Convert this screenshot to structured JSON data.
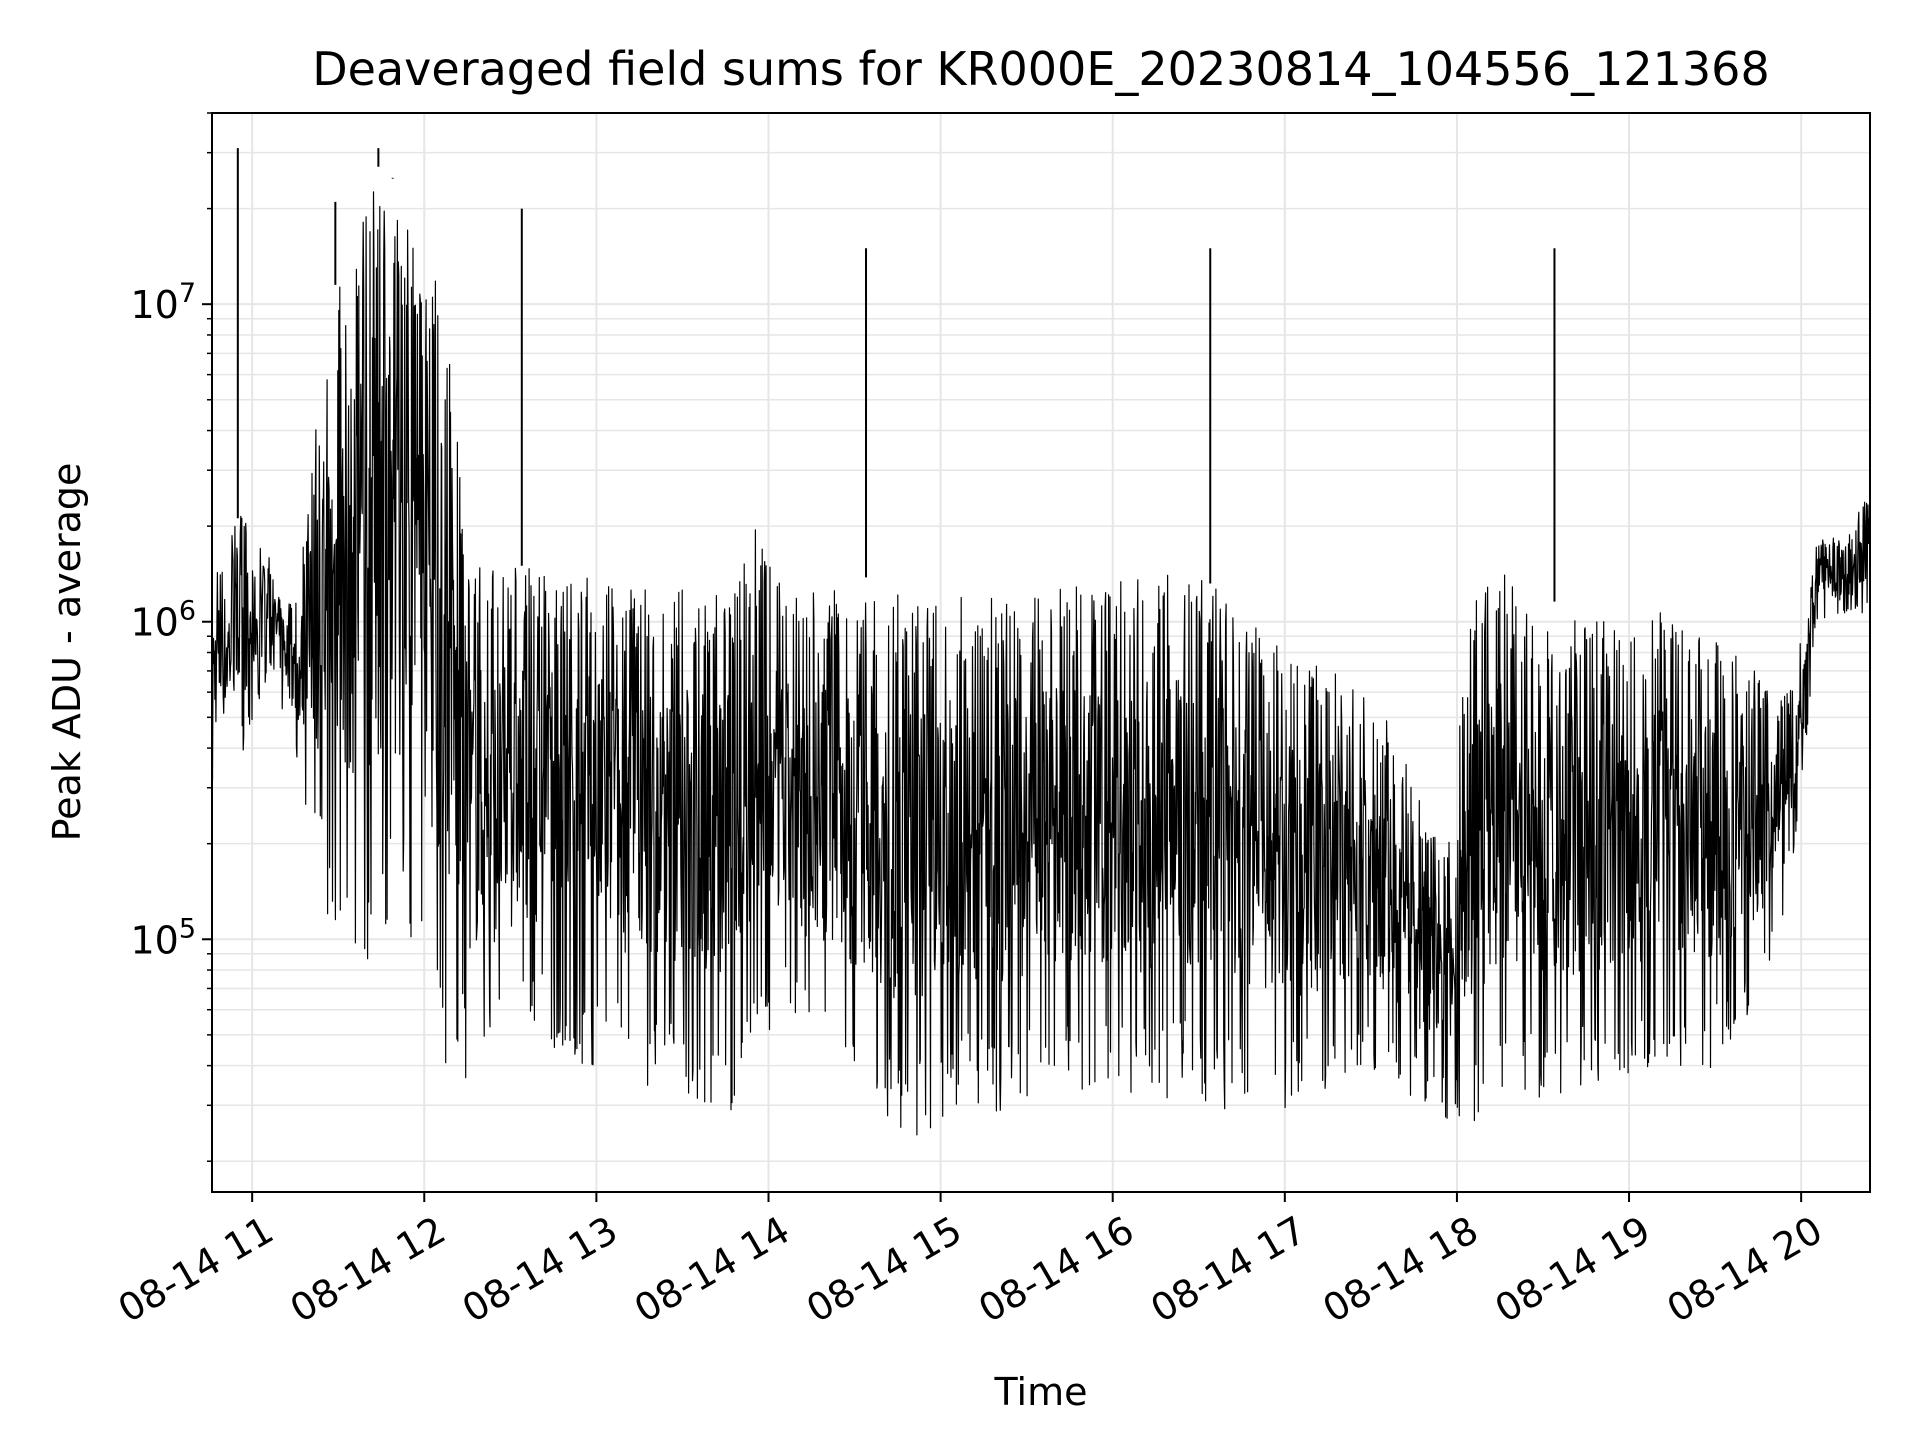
{
  "chart_data": {
    "type": "line",
    "title": "Deaveraged field sums for KR000E_20230814_104556_121368",
    "xlabel": "Time",
    "ylabel": "Peak ADU - average",
    "yscale": "log",
    "ylim": [
      16000,
      40000000
    ],
    "x_tick_labels": [
      "08-14 11",
      "08-14 12",
      "08-14 13",
      "08-14 14",
      "08-14 15",
      "08-14 16",
      "08-14 17",
      "08-14 18",
      "08-14 19",
      "08-14 20"
    ],
    "y_tick_labels": [
      {
        "value": 100000,
        "base": "10",
        "exp": "5"
      },
      {
        "value": 1000000,
        "base": "10",
        "exp": "6"
      },
      {
        "value": 10000000,
        "base": "10",
        "exp": "7"
      }
    ],
    "xlim": [
      "08-14 10:46",
      "08-14 20:24"
    ],
    "grid": true,
    "series": [
      {
        "color": "#000000",
        "description": "Dense high-frequency signal; envelope summarized below as time-binned peak (max) and trough (min) values with rare large spikes",
        "envelope": {
          "time": [
            "10:46",
            "10:56",
            "11:06",
            "11:16",
            "11:26",
            "11:36",
            "11:46",
            "11:56",
            "12:06",
            "12:16",
            "12:26",
            "12:36",
            "12:46",
            "12:56",
            "13:06",
            "13:16",
            "13:26",
            "13:36",
            "13:46",
            "13:56",
            "14:06",
            "14:16",
            "14:26",
            "14:36",
            "14:46",
            "14:56",
            "15:06",
            "15:16",
            "15:26",
            "15:36",
            "15:46",
            "15:56",
            "16:06",
            "16:16",
            "16:26",
            "16:36",
            "16:46",
            "16:56",
            "17:06",
            "17:16",
            "17:26",
            "17:36",
            "17:46",
            "17:56",
            "18:06",
            "18:16",
            "18:26",
            "18:36",
            "18:46",
            "18:56",
            "19:06",
            "19:16",
            "19:26",
            "19:36",
            "19:46",
            "19:56",
            "20:06",
            "20:16",
            "20:24"
          ],
          "max": [
            1500000,
            2200000,
            1600000,
            1200000,
            9500000,
            18000000,
            30000000,
            16000000,
            13000000,
            1600000,
            1500000,
            1500000,
            1400000,
            1400000,
            1400000,
            1300000,
            1300000,
            1400000,
            1300000,
            2000000,
            1200000,
            1300000,
            1300000,
            1400000,
            1200000,
            1200000,
            1300000,
            1200000,
            1200000,
            1300000,
            1300000,
            1300000,
            1400000,
            1400000,
            1400000,
            1300000,
            1000000,
            900000,
            700000,
            800000,
            600000,
            500000,
            300000,
            200000,
            1200000,
            1500000,
            1000000,
            1200000,
            1000000,
            1000000,
            1000000,
            1200000,
            1000000,
            800000,
            700000,
            600000,
            1900000,
            1800000,
            2700000
          ],
          "min": [
            300000,
            350000,
            700000,
            350000,
            120000,
            80000,
            90000,
            100000,
            40000,
            35000,
            40000,
            50000,
            45000,
            40000,
            38000,
            35000,
            33000,
            30000,
            26000,
            40000,
            55000,
            40000,
            35000,
            30000,
            22000,
            25000,
            30000,
            28000,
            30000,
            32000,
            33000,
            32000,
            30000,
            30000,
            32000,
            30000,
            27000,
            28000,
            30000,
            32000,
            38000,
            35000,
            30000,
            27000,
            25000,
            28000,
            30000,
            30000,
            33000,
            35000,
            38000,
            40000,
            38000,
            42000,
            60000,
            120000,
            1000000,
            1000000,
            1100000
          ]
        },
        "spikes": [
          {
            "time": "10:55",
            "value": 31000000
          },
          {
            "time": "11:29",
            "value": 21000000
          },
          {
            "time": "11:44",
            "value": 31000000
          },
          {
            "time": "11:49",
            "value": 25000000
          },
          {
            "time": "12:34",
            "value": 20000000
          },
          {
            "time": "14:34",
            "value": 15000000
          },
          {
            "time": "16:34",
            "value": 15000000
          },
          {
            "time": "18:34",
            "value": 15000000
          }
        ]
      }
    ]
  }
}
